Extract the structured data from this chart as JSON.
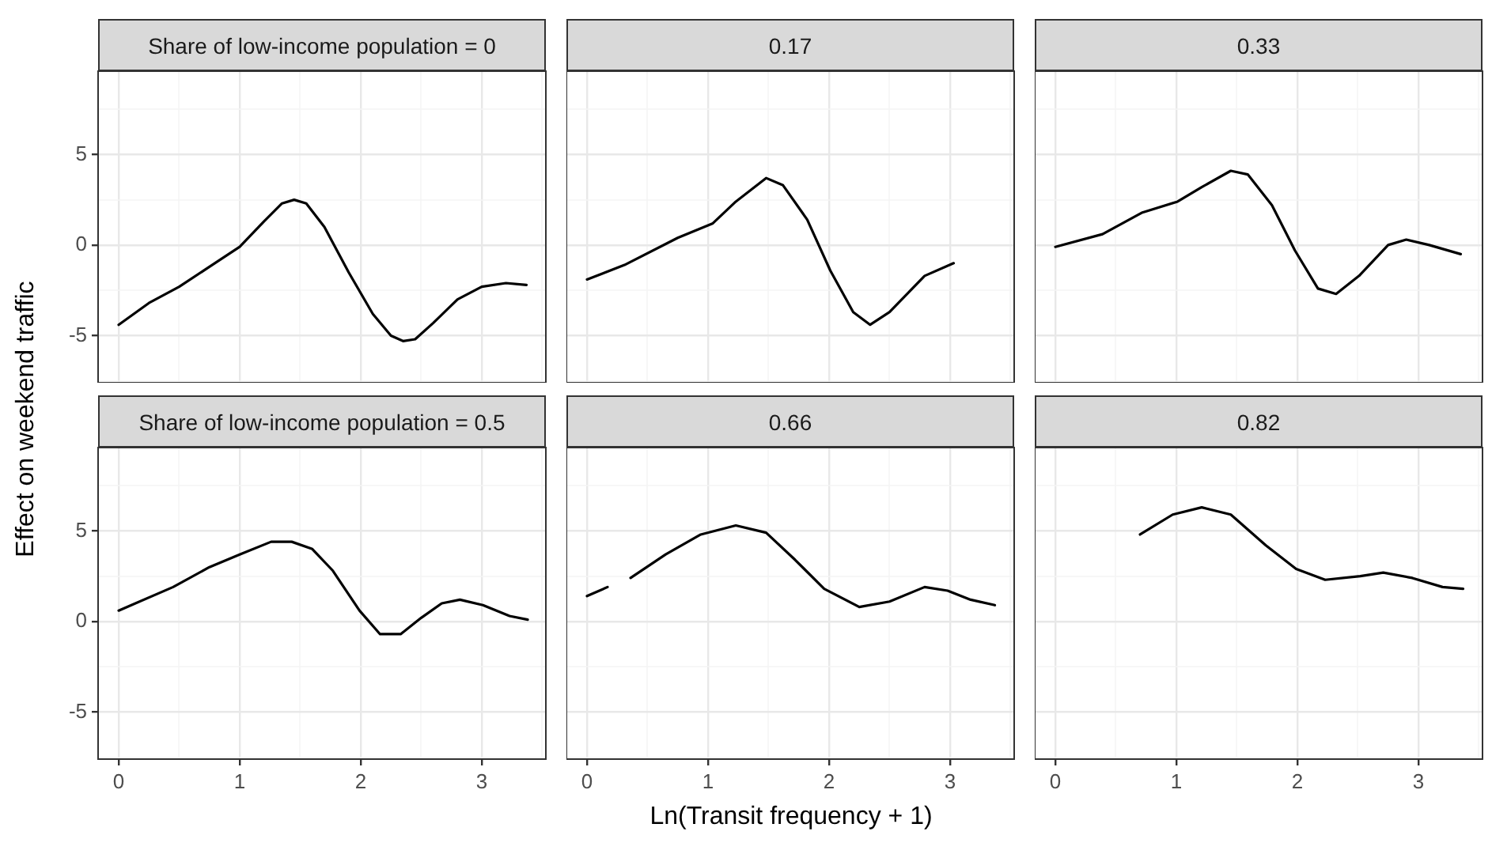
{
  "chart_data": [
    {
      "type": "line",
      "title": "Share of low-income population = 0",
      "ylabel": "Effect on weekend traffic",
      "xlim": [
        -0.17,
        3.53
      ],
      "ylim": [
        -7.6,
        9.6
      ],
      "xticks": [
        0,
        {
          "value": 0.5,
          "label": null
        },
        1,
        {
          "value": 1.5,
          "label": null
        },
        2,
        {
          "value": 2.5,
          "label": null
        },
        3,
        {
          "value": 3.5,
          "label": null
        }
      ],
      "yticks": [
        {
          "value": -7.5,
          "label": null
        },
        -5,
        {
          "value": -2.5,
          "label": null
        },
        0,
        {
          "value": 2.5,
          "label": null
        },
        5,
        {
          "value": 7.5,
          "label": null
        }
      ],
      "grid": true,
      "tick_labels": "y",
      "marker": "none",
      "line_style": "solid",
      "series": [
        {
          "color": "#000000",
          "x": [
            0,
            0.25,
            0.5,
            0.75,
            1,
            1.2,
            1.35,
            1.45,
            1.55,
            1.7,
            1.9,
            2.1,
            2.25,
            2.35,
            2.45,
            2.6,
            2.8,
            3.0,
            3.2,
            3.37
          ],
          "values": [
            -4.4,
            -3.2,
            -2.3,
            -1.2,
            -0.1,
            1.3,
            2.3,
            2.5,
            2.3,
            1.0,
            -1.5,
            -3.8,
            -5.0,
            -5.3,
            -5.2,
            -4.3,
            -3.0,
            -2.3,
            -2.1,
            -2.2
          ]
        }
      ]
    },
    {
      "type": "line",
      "title": "0.17",
      "xlim": [
        -0.17,
        3.53
      ],
      "ylim": [
        -7.6,
        9.6
      ],
      "xticks": [
        0,
        {
          "value": 0.5,
          "label": null
        },
        1,
        {
          "value": 1.5,
          "label": null
        },
        2,
        {
          "value": 2.5,
          "label": null
        },
        3,
        {
          "value": 3.5,
          "label": null
        }
      ],
      "yticks": [
        {
          "value": -7.5,
          "label": null
        },
        -5,
        {
          "value": -2.5,
          "label": null
        },
        0,
        {
          "value": 2.5,
          "label": null
        },
        5,
        {
          "value": 7.5,
          "label": null
        }
      ],
      "grid": true,
      "tick_labels": false,
      "marker": "none",
      "line_style": "solid",
      "series": [
        {
          "color": "#000000",
          "x": [
            0,
            0.31,
            0.75,
            1.04,
            1.23,
            1.48,
            1.62,
            1.82,
            2.01,
            2.2,
            2.34,
            2.5,
            2.79,
            3.03
          ],
          "values": [
            -1.9,
            -1.1,
            0.4,
            1.2,
            2.4,
            3.7,
            3.3,
            1.4,
            -1.4,
            -3.7,
            -4.4,
            -3.7,
            -1.7,
            -1.0
          ]
        }
      ]
    },
    {
      "type": "line",
      "title": "0.33",
      "xlim": [
        -0.17,
        3.53
      ],
      "ylim": [
        -7.6,
        9.6
      ],
      "xticks": [
        0,
        {
          "value": 0.5,
          "label": null
        },
        1,
        {
          "value": 1.5,
          "label": null
        },
        2,
        {
          "value": 2.5,
          "label": null
        },
        3,
        {
          "value": 3.5,
          "label": null
        }
      ],
      "yticks": [
        {
          "value": -7.5,
          "label": null
        },
        -5,
        {
          "value": -2.5,
          "label": null
        },
        0,
        {
          "value": 2.5,
          "label": null
        },
        5,
        {
          "value": 7.5,
          "label": null
        }
      ],
      "grid": true,
      "tick_labels": false,
      "marker": "none",
      "line_style": "solid",
      "series": [
        {
          "color": "#000000",
          "x": [
            0,
            0.39,
            0.72,
            1.01,
            1.21,
            1.45,
            1.59,
            1.79,
            1.98,
            2.17,
            2.32,
            2.51,
            2.75,
            2.9,
            3.09,
            3.35
          ],
          "values": [
            -0.1,
            0.6,
            1.8,
            2.4,
            3.2,
            4.1,
            3.9,
            2.2,
            -0.3,
            -2.4,
            -2.7,
            -1.7,
            0.0,
            0.3,
            0.0,
            -0.5
          ]
        }
      ]
    },
    {
      "type": "line",
      "title": "Share of low-income population = 0.5",
      "xlim": [
        -0.17,
        3.53
      ],
      "ylim": [
        -7.6,
        9.6
      ],
      "xticks": [
        0,
        {
          "value": 0.5,
          "label": null
        },
        1,
        {
          "value": 1.5,
          "label": null
        },
        2,
        {
          "value": 2.5,
          "label": null
        },
        3,
        {
          "value": 3.5,
          "label": null
        }
      ],
      "yticks": [
        {
          "value": -7.5,
          "label": null
        },
        -5,
        {
          "value": -2.5,
          "label": null
        },
        0,
        {
          "value": 2.5,
          "label": null
        },
        5,
        {
          "value": 7.5,
          "label": null
        }
      ],
      "grid": true,
      "marker": "none",
      "line_style": "solid",
      "series": [
        {
          "color": "#000000",
          "x": [
            0,
            0.45,
            0.75,
            1.0,
            1.26,
            1.43,
            1.6,
            1.77,
            1.99,
            2.16,
            2.33,
            2.5,
            2.67,
            2.82,
            3.01,
            3.23,
            3.38
          ],
          "values": [
            0.6,
            1.9,
            3.0,
            3.7,
            4.4,
            4.4,
            4.0,
            2.8,
            0.6,
            -0.7,
            -0.7,
            0.2,
            1.0,
            1.2,
            0.9,
            0.3,
            0.1
          ]
        }
      ]
    },
    {
      "type": "line",
      "title": "0.66",
      "xlabel": "Ln(Transit frequency + 1)",
      "xlim": [
        -0.17,
        3.53
      ],
      "ylim": [
        -7.6,
        9.6
      ],
      "xticks": [
        0,
        {
          "value": 0.5,
          "label": null
        },
        1,
        {
          "value": 1.5,
          "label": null
        },
        2,
        {
          "value": 2.5,
          "label": null
        },
        3,
        {
          "value": 3.5,
          "label": null
        }
      ],
      "yticks": [
        {
          "value": -7.5,
          "label": null
        },
        -5,
        {
          "value": -2.5,
          "label": null
        },
        0,
        {
          "value": 2.5,
          "label": null
        },
        5,
        {
          "value": 7.5,
          "label": null
        }
      ],
      "grid": true,
      "tick_labels": "x",
      "marker": "none",
      "line_style": "solid",
      "series": [
        {
          "color": "#000000",
          "x": [
            0,
            0.17,
            0.26,
            0.36,
            0.65,
            0.94,
            1.23,
            1.48,
            1.72,
            1.96,
            2.25,
            2.5,
            2.79,
            2.98,
            3.17,
            3.37
          ],
          "values": [
            1.4,
            1.9,
            null,
            2.4,
            3.7,
            4.8,
            5.3,
            4.9,
            3.4,
            1.8,
            0.8,
            1.1,
            1.9,
            1.7,
            1.2,
            0.9
          ]
        }
      ]
    },
    {
      "type": "line",
      "title": "0.82",
      "xlim": [
        -0.17,
        3.53
      ],
      "ylim": [
        -7.6,
        9.6
      ],
      "xticks": [
        0,
        {
          "value": 0.5,
          "label": null
        },
        1,
        {
          "value": 1.5,
          "label": null
        },
        2,
        {
          "value": 2.5,
          "label": null
        },
        3,
        {
          "value": 3.5,
          "label": null
        }
      ],
      "yticks": [
        {
          "value": -7.5,
          "label": null
        },
        -5,
        {
          "value": -2.5,
          "label": null
        },
        0,
        {
          "value": 2.5,
          "label": null
        },
        5,
        {
          "value": 7.5,
          "label": null
        }
      ],
      "grid": true,
      "tick_labels": "x",
      "marker": "none",
      "line_style": "solid",
      "series": [
        {
          "color": "#000000",
          "x": [
            0.7,
            0.97,
            1.21,
            1.45,
            1.74,
            1.99,
            2.23,
            2.52,
            2.71,
            2.95,
            3.2,
            3.37
          ],
          "values": [
            4.8,
            5.9,
            6.3,
            5.9,
            4.2,
            2.9,
            2.3,
            2.5,
            2.7,
            2.4,
            1.9,
            1.8
          ]
        }
      ]
    }
  ]
}
